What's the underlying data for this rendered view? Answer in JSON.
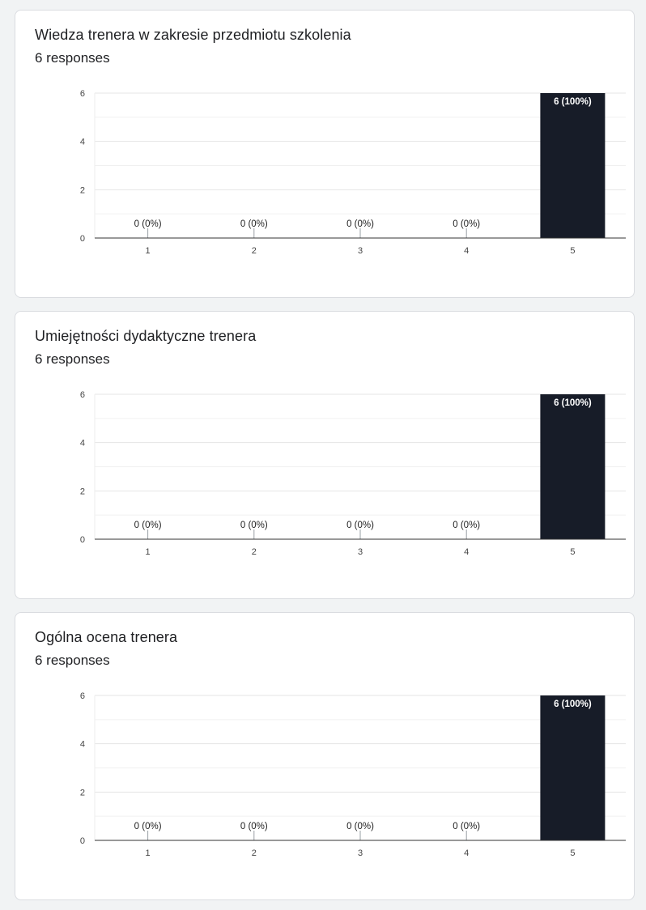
{
  "charts": [
    {
      "title": "Wiedza trenera w zakresie przedmiotu szkolenia",
      "responses": "6 responses",
      "chart_data": {
        "type": "bar",
        "categories": [
          "1",
          "2",
          "3",
          "4",
          "5"
        ],
        "values": [
          0,
          0,
          0,
          0,
          6
        ],
        "data_labels": [
          "0 (0%)",
          "0 (0%)",
          "0 (0%)",
          "0 (0%)",
          "6 (100%)"
        ],
        "y_ticks": [
          "0",
          "2",
          "4",
          "6"
        ],
        "ylim": [
          0,
          6
        ],
        "grid": true,
        "bar_color": "#171c28"
      }
    },
    {
      "title": "Umiejętności dydaktyczne trenera",
      "responses": "6 responses",
      "chart_data": {
        "type": "bar",
        "categories": [
          "1",
          "2",
          "3",
          "4",
          "5"
        ],
        "values": [
          0,
          0,
          0,
          0,
          6
        ],
        "data_labels": [
          "0 (0%)",
          "0 (0%)",
          "0 (0%)",
          "0 (0%)",
          "6 (100%)"
        ],
        "y_ticks": [
          "0",
          "2",
          "4",
          "6"
        ],
        "ylim": [
          0,
          6
        ],
        "grid": true,
        "bar_color": "#171c28"
      }
    },
    {
      "title": "Ogólna ocena trenera",
      "responses": "6 responses",
      "chart_data": {
        "type": "bar",
        "categories": [
          "1",
          "2",
          "3",
          "4",
          "5"
        ],
        "values": [
          0,
          0,
          0,
          0,
          6
        ],
        "data_labels": [
          "0 (0%)",
          "0 (0%)",
          "0 (0%)",
          "0 (0%)",
          "6 (100%)"
        ],
        "y_ticks": [
          "0",
          "2",
          "4",
          "6"
        ],
        "ylim": [
          0,
          6
        ],
        "grid": true,
        "bar_color": "#171c28"
      }
    }
  ]
}
